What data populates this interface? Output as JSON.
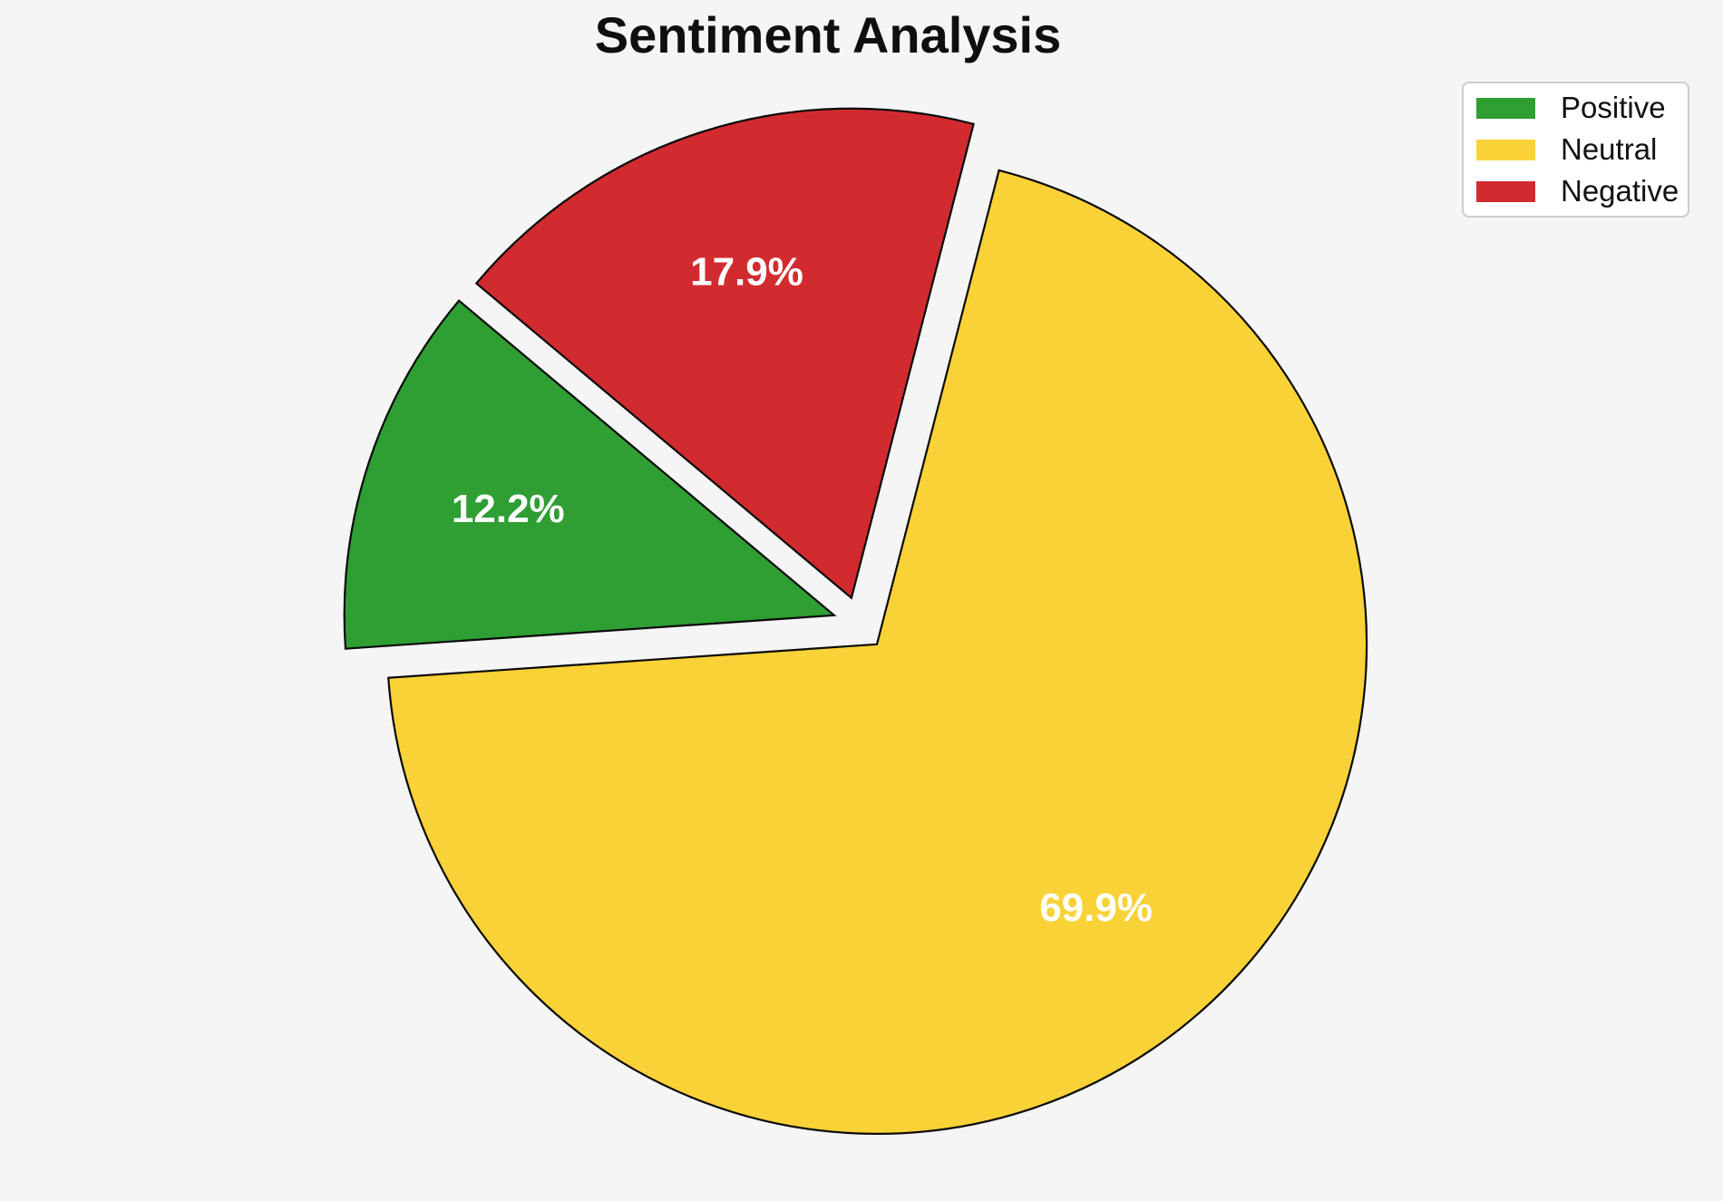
{
  "title": "Sentiment Analysis",
  "colors": {
    "background": "#f5f5f6",
    "slice_edge": "#0a0a0a",
    "pct_label_text": "#ffffff",
    "title_text": "#0f0f0f",
    "legend_background": "#ffffff",
    "legend_border": "#cccccc",
    "legend_text": "#111111"
  },
  "chart_data": {
    "type": "pie",
    "title": "Sentiment Analysis",
    "labels": [
      "Positive",
      "Neutral",
      "Negative"
    ],
    "values": [
      12.2,
      69.9,
      17.9
    ],
    "pct_labels": [
      "12.2%",
      "69.9%",
      "17.9%"
    ],
    "slice_colors": [
      "#2f9e33",
      "#f9d237",
      "#d22b2f"
    ],
    "start_angle_deg": 140,
    "direction": "counterclockwise",
    "explode": [
      0.055,
      0.055,
      0.055
    ],
    "pct_distance": 0.7,
    "legend_position": "upper right",
    "legend_entries": [
      "Positive",
      "Neutral",
      "Negative"
    ]
  }
}
